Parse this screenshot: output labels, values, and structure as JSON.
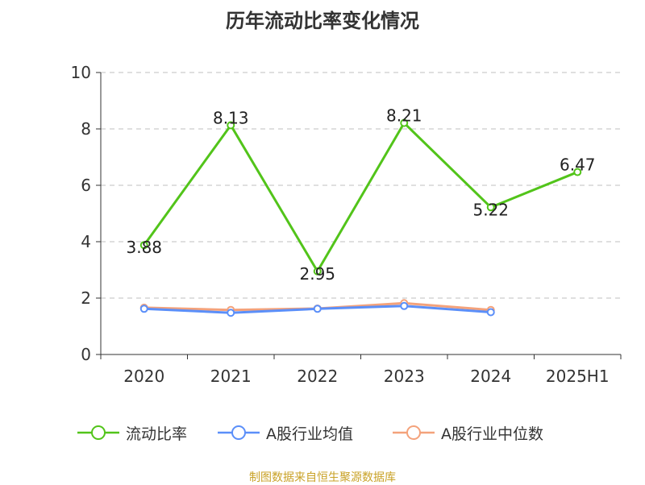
{
  "chart_data": {
    "type": "line",
    "title": "历年流动比率变化情况",
    "categories": [
      "2020",
      "2021",
      "2022",
      "2023",
      "2024",
      "2025H1"
    ],
    "ylim": [
      0,
      10
    ],
    "yticks": [
      0,
      2,
      4,
      6,
      8,
      10
    ],
    "grid": true,
    "legend_position": "bottom",
    "series": [
      {
        "name": "流动比率",
        "color": "#52c41a",
        "values": [
          3.88,
          8.13,
          2.95,
          8.21,
          5.22,
          6.47
        ],
        "show_labels": true
      },
      {
        "name": "A股行业均值",
        "color": "#5b8ff9",
        "values": [
          1.62,
          1.48,
          1.62,
          1.72,
          1.5,
          null
        ],
        "show_labels": false
      },
      {
        "name": "A股行业中位数",
        "color": "#f4a27b",
        "values": [
          1.66,
          1.58,
          1.63,
          1.82,
          1.58,
          null
        ],
        "show_labels": false
      }
    ]
  },
  "source_note": "制图数据来自恒生聚源数据库"
}
